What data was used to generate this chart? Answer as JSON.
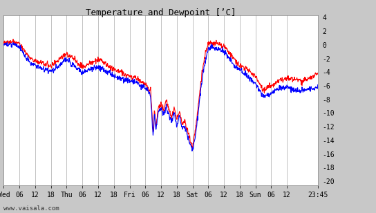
{
  "title": "Temperature and Dewpoint [’C]",
  "ylabel_right_ticks": [
    4,
    2,
    0,
    -2,
    -4,
    -6,
    -8,
    -10,
    -12,
    -14,
    -16,
    -18,
    -20
  ],
  "ylim": [
    -20.5,
    4.5
  ],
  "background_color": "#c8c8c8",
  "plot_bg_color": "#ffffff",
  "grid_color": "#aaaaaa",
  "temp_color": "#ff0000",
  "dewpoint_color": "#0000ff",
  "line_width": 0.8,
  "watermark": "www.vaisala.com",
  "x_tick_labels": [
    "Wed",
    "06",
    "12",
    "18",
    "Thu",
    "06",
    "12",
    "18",
    "Fri",
    "06",
    "12",
    "18",
    "Sat",
    "06",
    "12",
    "18",
    "Sun",
    "06",
    "12",
    "23:45"
  ],
  "x_tick_positions": [
    0,
    6,
    12,
    18,
    24,
    30,
    36,
    42,
    48,
    54,
    60,
    66,
    72,
    78,
    84,
    90,
    96,
    102,
    108,
    119.75
  ]
}
